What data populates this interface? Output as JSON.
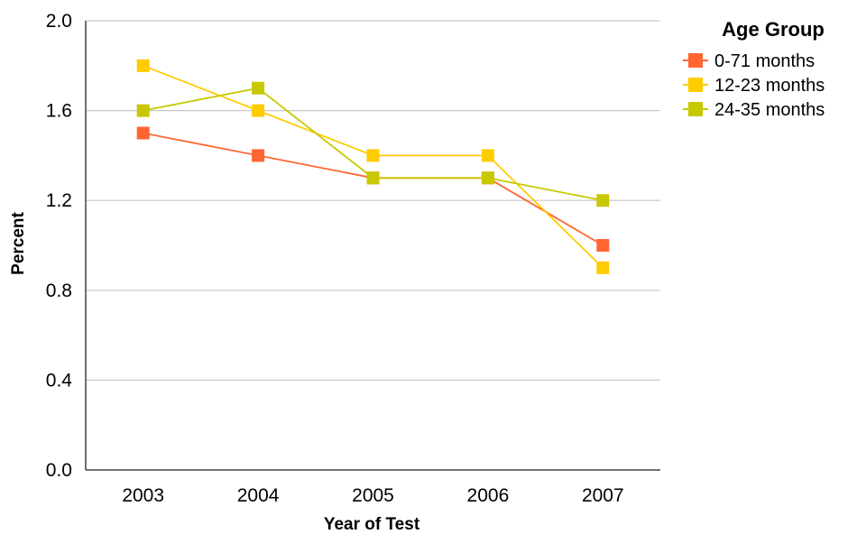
{
  "chart_data": {
    "type": "line",
    "title": "",
    "xlabel": "Year of Test",
    "ylabel": "Percent",
    "categories": [
      "2003",
      "2004",
      "2005",
      "2006",
      "2007"
    ],
    "ylim": [
      0,
      2.0
    ],
    "yticks": [
      "0.0",
      "0.4",
      "0.8",
      "1.2",
      "1.6",
      "2.0"
    ],
    "grid": true,
    "legend": {
      "title": "Age Group",
      "position": "right"
    },
    "series": [
      {
        "name": "0-71 months",
        "color": "#FF6633",
        "values": [
          1.5,
          1.4,
          1.3,
          1.3,
          1.0
        ]
      },
      {
        "name": "12-23 months",
        "color": "#FFCC00",
        "values": [
          1.8,
          1.6,
          1.4,
          1.4,
          0.9
        ]
      },
      {
        "name": "24-35 months",
        "color": "#C8C800",
        "values": [
          1.6,
          1.7,
          1.3,
          1.3,
          1.2
        ]
      }
    ]
  }
}
